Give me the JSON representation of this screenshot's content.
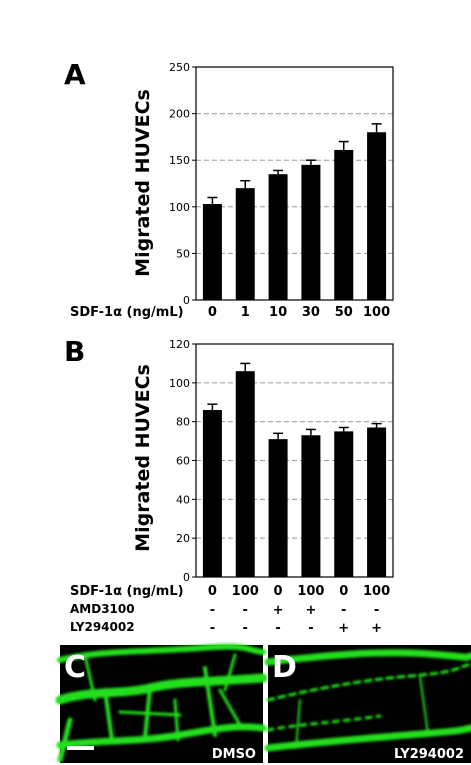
{
  "chart_data": [
    {
      "type": "bar",
      "panel": "A",
      "ylabel": "Migrated HUVECs",
      "ylim": [
        0,
        250
      ],
      "yticks": [
        0,
        50,
        100,
        150,
        200,
        250
      ],
      "grid": "dashed horizontal",
      "row_labels": [
        "SDF-1α (ng/mL)"
      ],
      "categories": [
        "0",
        "1",
        "10",
        "30",
        "50",
        "100"
      ],
      "values": [
        103,
        120,
        135,
        145,
        161,
        180
      ],
      "errors": [
        7,
        8,
        4,
        5,
        9,
        9
      ]
    },
    {
      "type": "bar",
      "panel": "B",
      "ylabel": "Migrated HUVECs",
      "ylim": [
        0,
        120
      ],
      "yticks": [
        0,
        20,
        40,
        60,
        80,
        100,
        120
      ],
      "grid": "dashed horizontal",
      "row_labels": [
        "SDF-1α (ng/mL)",
        "AMD3100",
        "LY294002"
      ],
      "categories": [
        "0",
        "100",
        "0",
        "100",
        "0",
        "100"
      ],
      "amd3100": [
        "-",
        "-",
        "+",
        "+",
        "-",
        "-"
      ],
      "ly294002": [
        "-",
        "-",
        "-",
        "-",
        "+",
        "+"
      ],
      "values": [
        86,
        106,
        71,
        73,
        75,
        77
      ],
      "errors": [
        3,
        4,
        3,
        3,
        2,
        2
      ]
    }
  ],
  "images": [
    {
      "letter": "C",
      "label": "DMSO"
    },
    {
      "letter": "D",
      "label": "LY294002"
    }
  ],
  "colors": {
    "bar": "#000000",
    "grid": "#9a9a9a",
    "image_bg": "#000000",
    "vessel": "#22e01e"
  }
}
